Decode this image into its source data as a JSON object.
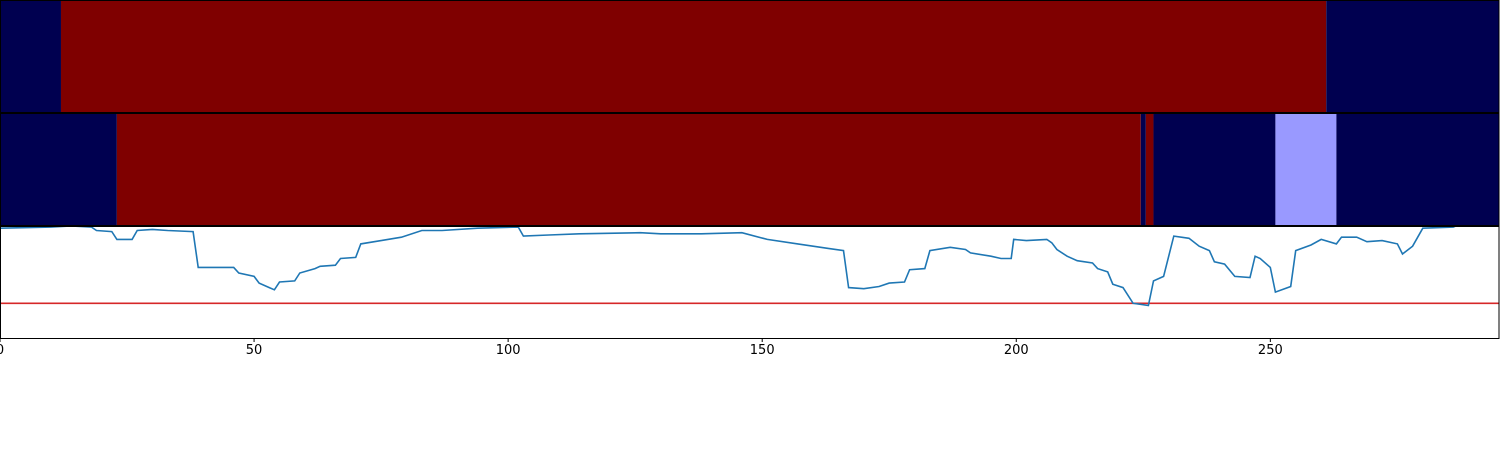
{
  "chart_data": [
    {
      "type": "strip",
      "xlim": [
        0,
        295
      ],
      "segments": [
        {
          "x": [
            0,
            12
          ],
          "color": "#000050"
        },
        {
          "x": [
            12,
            261
          ],
          "color": "#7f0000"
        },
        {
          "x": [
            261,
            295
          ],
          "color": "#000050"
        }
      ]
    },
    {
      "type": "strip",
      "xlim": [
        0,
        295
      ],
      "segments": [
        {
          "x": [
            0,
            23
          ],
          "color": "#000050"
        },
        {
          "x": [
            23,
            224.5
          ],
          "color": "#7f0000"
        },
        {
          "x": [
            224.5,
            225.5
          ],
          "color": "#000050"
        },
        {
          "x": [
            225.5,
            227
          ],
          "color": "#7f0000"
        },
        {
          "x": [
            227,
            251
          ],
          "color": "#000050"
        },
        {
          "x": [
            251,
            263
          ],
          "color": "#9999ff"
        },
        {
          "x": [
            263,
            295
          ],
          "color": "#000050"
        }
      ]
    },
    {
      "type": "line",
      "xlim": [
        0,
        295
      ],
      "ylim": [
        0,
        1
      ],
      "xticks": [
        0,
        50,
        100,
        150,
        200,
        250
      ],
      "color": "#1f77b4",
      "x": [
        0,
        10,
        14,
        18,
        19,
        22,
        23,
        26,
        27,
        30,
        33,
        38,
        39,
        42,
        43,
        46,
        47,
        50,
        51,
        53,
        54,
        55,
        58,
        59,
        62,
        63,
        66,
        67,
        70,
        71,
        75,
        79,
        83,
        87,
        94,
        102,
        103,
        108,
        114,
        126,
        130,
        138,
        146,
        151,
        157,
        163,
        166,
        167,
        170,
        173,
        175,
        178,
        179,
        182,
        183,
        187,
        190,
        191,
        195,
        197,
        199,
        199.5,
        202,
        206,
        207,
        208,
        210,
        212,
        215,
        216,
        218,
        219,
        221,
        223,
        226,
        227,
        229,
        231,
        234,
        236,
        238,
        239,
        241,
        243,
        246,
        247,
        248,
        250,
        251,
        254,
        255,
        258,
        260,
        263,
        264,
        267,
        269,
        272,
        275,
        276,
        278,
        280,
        286,
        287
      ],
      "values": [
        0.98,
        0.99,
        1.0,
        0.99,
        0.96,
        0.95,
        0.88,
        0.88,
        0.96,
        0.97,
        0.96,
        0.95,
        0.63,
        0.63,
        0.63,
        0.63,
        0.58,
        0.55,
        0.49,
        0.45,
        0.43,
        0.5,
        0.51,
        0.58,
        0.62,
        0.64,
        0.65,
        0.71,
        0.72,
        0.84,
        0.87,
        0.9,
        0.96,
        0.96,
        0.98,
        0.99,
        0.91,
        0.92,
        0.93,
        0.94,
        0.93,
        0.93,
        0.94,
        0.88,
        0.84,
        0.8,
        0.78,
        0.45,
        0.44,
        0.46,
        0.49,
        0.5,
        0.61,
        0.62,
        0.78,
        0.81,
        0.79,
        0.76,
        0.73,
        0.71,
        0.71,
        0.88,
        0.87,
        0.88,
        0.85,
        0.79,
        0.73,
        0.69,
        0.67,
        0.62,
        0.59,
        0.48,
        0.45,
        0.31,
        0.29,
        0.51,
        0.55,
        0.91,
        0.89,
        0.82,
        0.78,
        0.68,
        0.66,
        0.55,
        0.54,
        0.73,
        0.71,
        0.63,
        0.41,
        0.46,
        0.78,
        0.83,
        0.88,
        0.84,
        0.9,
        0.9,
        0.86,
        0.87,
        0.84,
        0.75,
        0.82,
        0.98,
        0.99,
        1.01
      ],
      "hlines": [
        {
          "value": 0.31,
          "color": "#d62728"
        }
      ]
    }
  ]
}
